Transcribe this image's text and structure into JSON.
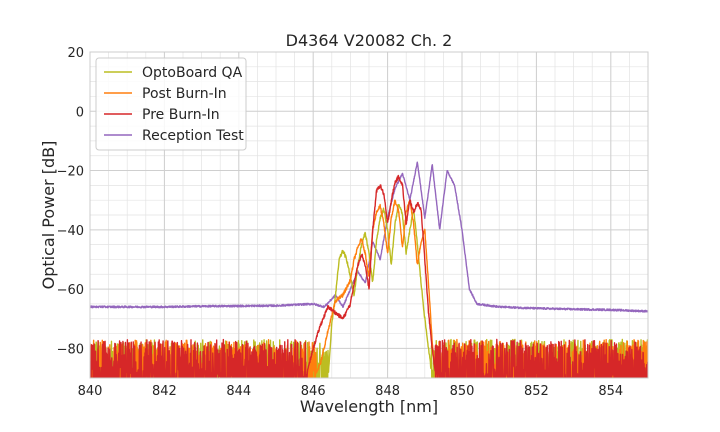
{
  "chart_data": {
    "type": "line",
    "title": "D4364 V20082 Ch. 2",
    "xlabel": "Wavelength [nm]",
    "ylabel": "Optical Power [dB]",
    "xlim": [
      840,
      855
    ],
    "ylim": [
      -90,
      20
    ],
    "xticks": [
      840,
      842,
      844,
      846,
      848,
      850,
      852,
      854
    ],
    "yticks": [
      -80,
      -60,
      -40,
      -20,
      0,
      20
    ],
    "xtick_labels": [
      "840",
      "842",
      "844",
      "846",
      "848",
      "850",
      "852",
      "854"
    ],
    "ytick_labels": [
      "−80",
      "−60",
      "−40",
      "−20",
      "0",
      "20"
    ],
    "grid": true,
    "legend": "top-left",
    "series": [
      {
        "name": "OptoBoard QA",
        "color": "#bcbd22",
        "floor_noise": true,
        "x": [
          846.4,
          846.5,
          846.6,
          846.7,
          846.8,
          846.9,
          847.0,
          847.1,
          847.2,
          847.3,
          847.4,
          847.5,
          847.6,
          847.7,
          847.8,
          847.9,
          848.0,
          848.1,
          848.2,
          848.3,
          848.4,
          848.5,
          848.6,
          848.7,
          848.8,
          848.9,
          849.0,
          849.1,
          849.2,
          849.3
        ],
        "y": [
          -90,
          -72,
          -62,
          -50,
          -47,
          -50,
          -56,
          -62,
          -52,
          -45,
          -41,
          -48,
          -58,
          -44,
          -36,
          -33,
          -40,
          -52,
          -38,
          -31,
          -35,
          -48,
          -40,
          -33,
          -45,
          -58,
          -70,
          -80,
          -90,
          -90
        ]
      },
      {
        "name": "Post Burn-In",
        "color": "#ff7f0e",
        "floor_noise": true,
        "x": [
          846.0,
          846.2,
          846.4,
          846.6,
          846.8,
          847.0,
          847.1,
          847.2,
          847.3,
          847.4,
          847.5,
          847.6,
          847.7,
          847.8,
          847.9,
          848.0,
          848.1,
          848.2,
          848.3,
          848.4,
          848.5,
          848.6,
          848.7,
          848.8,
          848.9,
          849.0,
          849.1,
          849.2,
          849.3
        ],
        "y": [
          -90,
          -85,
          -74,
          -64,
          -62,
          -57,
          -50,
          -46,
          -43,
          -48,
          -56,
          -40,
          -34,
          -32,
          -38,
          -48,
          -36,
          -30,
          -34,
          -46,
          -34,
          -30,
          -38,
          -52,
          -44,
          -40,
          -58,
          -78,
          -90
        ]
      },
      {
        "name": "Pre Burn-In",
        "color": "#d62728",
        "floor_noise": true,
        "x": [
          845.8,
          846.0,
          846.2,
          846.4,
          846.6,
          846.8,
          847.0,
          847.1,
          847.2,
          847.3,
          847.4,
          847.5,
          847.6,
          847.7,
          847.8,
          847.9,
          848.0,
          848.1,
          848.2,
          848.3,
          848.4,
          848.5,
          848.6,
          848.7,
          848.8,
          848.9,
          849.0,
          849.1,
          849.2,
          849.3
        ],
        "y": [
          -90,
          -80,
          -72,
          -66,
          -68,
          -70,
          -65,
          -58,
          -52,
          -48,
          -52,
          -60,
          -40,
          -27,
          -25,
          -28,
          -38,
          -30,
          -24,
          -22,
          -25,
          -38,
          -30,
          -34,
          -31,
          -33,
          -50,
          -68,
          -80,
          -90
        ]
      },
      {
        "name": "Reception Test",
        "color": "#9467bd",
        "floor_noise": false,
        "x": [
          840.0,
          841.0,
          842.0,
          843.0,
          844.0,
          845.0,
          845.5,
          846.0,
          846.3,
          846.6,
          846.8,
          847.0,
          847.2,
          847.4,
          847.6,
          847.8,
          848.0,
          848.2,
          848.4,
          848.6,
          848.8,
          849.0,
          849.2,
          849.4,
          849.6,
          849.8,
          850.0,
          850.2,
          850.4,
          851.0,
          852.0,
          853.0,
          854.0,
          855.0
        ],
        "y": [
          -66,
          -66,
          -66,
          -65.8,
          -65.7,
          -65.6,
          -65.3,
          -65,
          -66,
          -62,
          -66,
          -60,
          -54,
          -58,
          -44,
          -50,
          -36,
          -26,
          -21,
          -30,
          -17,
          -36,
          -18,
          -40,
          -20,
          -25,
          -40,
          -60,
          -65,
          -66,
          -66.5,
          -66.8,
          -67,
          -67.5
        ]
      }
    ]
  }
}
